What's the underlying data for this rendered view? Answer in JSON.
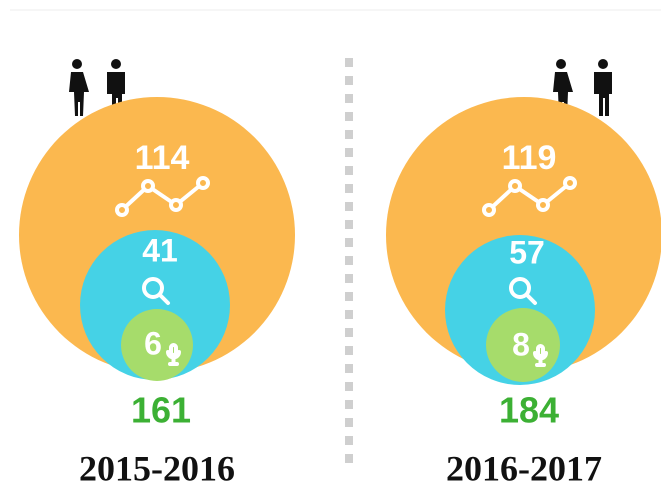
{
  "panels": [
    {
      "outer": 114,
      "middle": 41,
      "inner": 6,
      "total": 161,
      "year": "2015-2016"
    },
    {
      "outer": 119,
      "middle": 57,
      "inner": 8,
      "total": 184,
      "year": "2016-2017"
    }
  ]
}
